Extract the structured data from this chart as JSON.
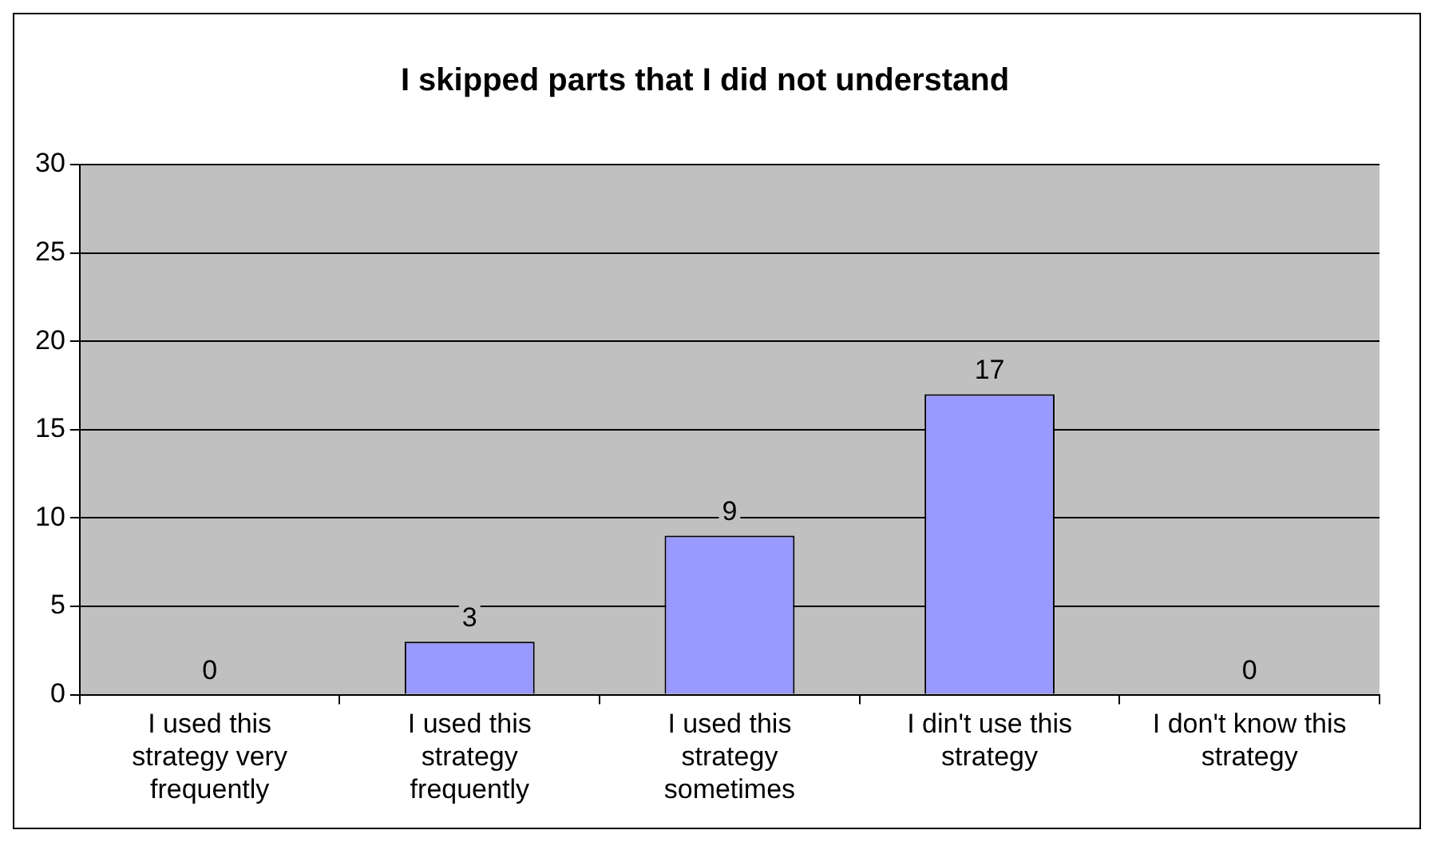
{
  "chart_data": {
    "type": "bar",
    "title": "I skipped parts that I did not understand",
    "categories": [
      "I used this strategy very frequently",
      "I used this strategy frequently",
      "I used this strategy sometimes",
      "I din't use this strategy",
      "I don't know this strategy"
    ],
    "values": [
      0,
      3,
      9,
      17,
      0
    ],
    "color": "#9999ff",
    "ylim": [
      0,
      30
    ],
    "yticks": [
      0,
      5,
      10,
      15,
      20,
      25,
      30
    ],
    "grid": "y",
    "legend": false,
    "data_labels": true
  }
}
